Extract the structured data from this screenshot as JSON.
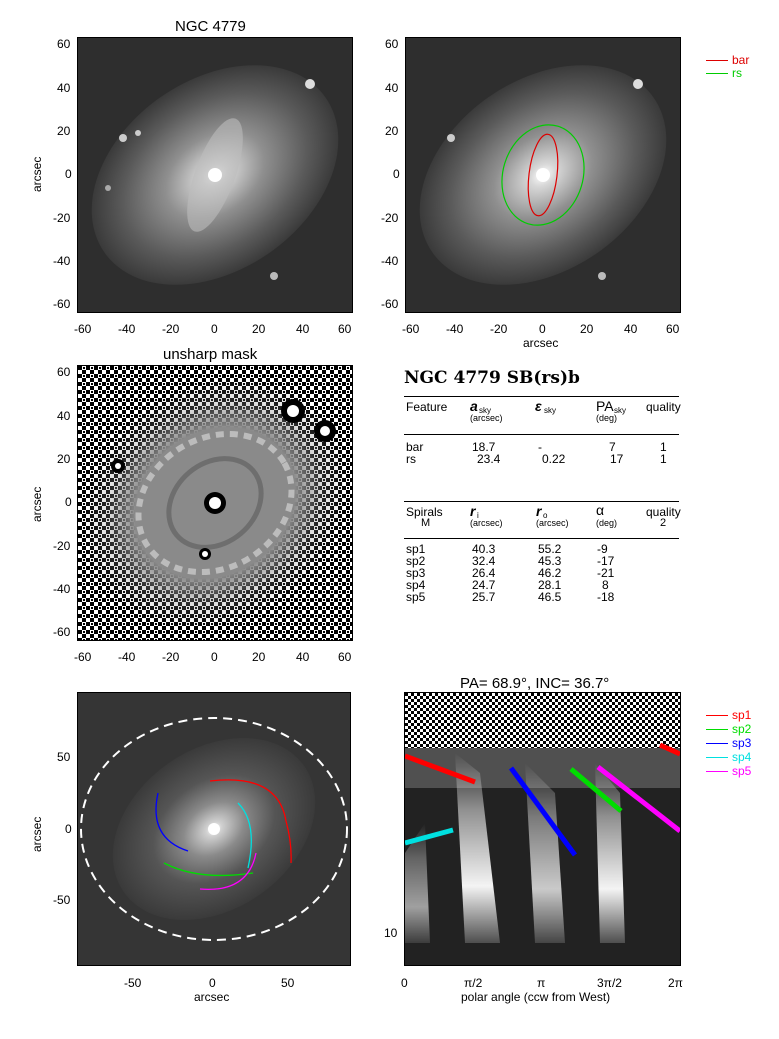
{
  "panel1": {
    "title": "NGC 4779",
    "ylabel": "arcsec",
    "xticks": [
      "-60",
      "-40",
      "-20",
      "0",
      "20",
      "40",
      "60"
    ],
    "yticks": [
      "60",
      "40",
      "20",
      "0",
      "-20",
      "-40",
      "-60"
    ]
  },
  "panel2": {
    "xlabel": "arcsec",
    "xticks": [
      "-60",
      "-40",
      "-20",
      "0",
      "20",
      "40",
      "60"
    ],
    "yticks": [
      "60",
      "40",
      "20",
      "0",
      "-20",
      "-40",
      "-60"
    ],
    "legend": [
      {
        "label": "bar",
        "color": "#dd0000"
      },
      {
        "label": "rs",
        "color": "#00cc00"
      }
    ]
  },
  "panel3": {
    "title": "unsharp mask",
    "ylabel": "arcsec",
    "xticks": [
      "-60",
      "-40",
      "-20",
      "0",
      "20",
      "40",
      "60"
    ],
    "yticks": [
      "60",
      "40",
      "20",
      "0",
      "-20",
      "-40",
      "-60"
    ]
  },
  "table": {
    "title": "NGC 4779  SB(rs)b",
    "features_header": {
      "c1": "Feature",
      "c2": "a",
      "c2sub": "sky",
      "c2unit": "(arcsec)",
      "c3": "ε",
      "c3sub": "sky",
      "c4": "PA",
      "c4sub": "sky",
      "c4unit": "(deg)",
      "c5": "quality"
    },
    "features": [
      {
        "name": "bar",
        "a": "18.7",
        "e": "-",
        "pa": "7",
        "q": "1"
      },
      {
        "name": "rs",
        "a": "23.4",
        "e": "0.22",
        "pa": "17",
        "q": "1"
      }
    ],
    "spirals_header": {
      "c1": "Spirals",
      "c1b": "M",
      "c2": "r",
      "c2sub": "i",
      "c2unit": "(arcsec)",
      "c3": "r",
      "c3sub": "o",
      "c3unit": "(arcsec)",
      "c4": "α",
      "c4unit": "(deg)",
      "c5": "quality",
      "c5b": "2"
    },
    "spirals": [
      {
        "name": "sp1",
        "ri": "40.3",
        "ro": "55.2",
        "alpha": "-9"
      },
      {
        "name": "sp2",
        "ri": "32.4",
        "ro": "45.3",
        "alpha": "-17"
      },
      {
        "name": "sp3",
        "ri": "26.4",
        "ro": "46.2",
        "alpha": "-21"
      },
      {
        "name": "sp4",
        "ri": "24.7",
        "ro": "28.1",
        "alpha": "8"
      },
      {
        "name": "sp5",
        "ri": "25.7",
        "ro": "46.5",
        "alpha": "-18"
      }
    ]
  },
  "panel4": {
    "xlabel": "arcsec",
    "ylabel": "arcsec",
    "xticks": [
      "-50",
      "0",
      "50"
    ],
    "yticks": [
      "50",
      "0",
      "-50"
    ]
  },
  "panel5": {
    "title": "PA= 68.9°, INC= 36.7°",
    "xlabel": "polar angle (ccw from West)",
    "xticks": [
      "0",
      "π/2",
      "π",
      "3π/2",
      "2π"
    ],
    "yticks": [
      "10"
    ],
    "legend": [
      {
        "label": "sp1",
        "color": "#ff0000"
      },
      {
        "label": "sp2",
        "color": "#00dd00"
      },
      {
        "label": "sp3",
        "color": "#0000ff"
      },
      {
        "label": "sp4",
        "color": "#00e0e0"
      },
      {
        "label": "sp5",
        "color": "#ff00ff"
      }
    ]
  }
}
